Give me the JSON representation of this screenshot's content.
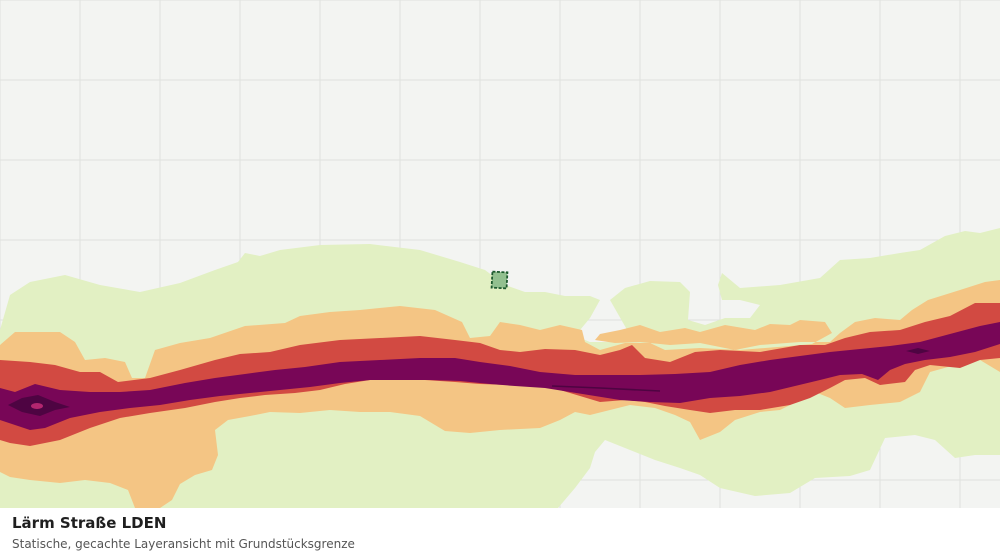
{
  "map": {
    "colors": {
      "background": "#f3f4f2",
      "grid": "#dfe1de",
      "noise_band_1": "#e2f0c3",
      "noise_band_2": "#f4c584",
      "noise_band_3": "#d24a42",
      "noise_band_4": "#780657",
      "noise_band_5": "#4e0442",
      "parcel_fill": "#92c08f",
      "parcel_border": "#1d5a2e"
    },
    "icons": [
      "parcel-boundary-marker"
    ]
  },
  "caption": {
    "title": "Lärm Straße LDEN",
    "subtitle": "Statische, gecachte Layeransicht mit Grundstücksgrenze"
  }
}
